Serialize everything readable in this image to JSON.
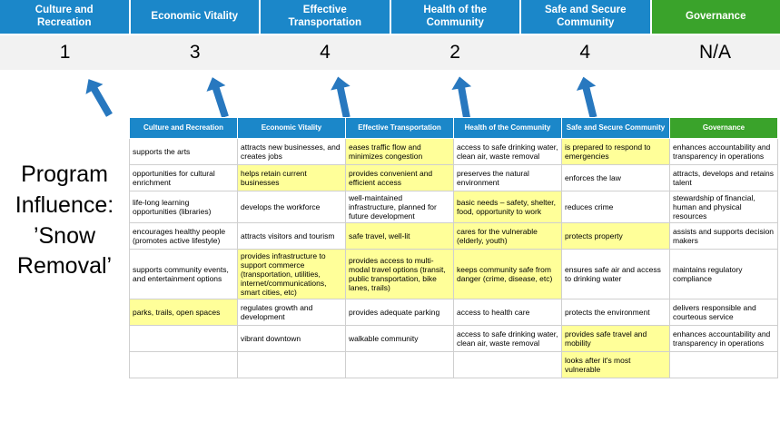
{
  "program_label": "Program Influence: ’Snow Removal’",
  "colors": {
    "blue": "#1b87c9",
    "green": "#3aa32b",
    "arrow": "#2878bf",
    "highlight": "#ffff99",
    "score_band": "#f2f2f2"
  },
  "pillars": [
    {
      "key": "culture-and-recreation",
      "label": "Culture and Recreation",
      "score": "1",
      "color": "blue"
    },
    {
      "key": "economic-vitality",
      "label": "Economic Vitality",
      "score": "3",
      "color": "blue"
    },
    {
      "key": "effective-transportation",
      "label": "Effective Transportation",
      "score": "4",
      "color": "blue"
    },
    {
      "key": "health-of-the-community",
      "label": "Health of the Community",
      "score": "2",
      "color": "blue"
    },
    {
      "key": "safe-and-secure-community",
      "label": "Safe and Secure Community",
      "score": "4",
      "color": "blue"
    },
    {
      "key": "governance",
      "label": "Governance",
      "score": "N/A",
      "color": "green"
    }
  ],
  "matrix": {
    "rows": [
      [
        {
          "t": "supports the arts",
          "h": false
        },
        {
          "t": "attracts new businesses, and creates jobs",
          "h": false
        },
        {
          "t": "eases traffic flow and minimizes congestion",
          "h": true
        },
        {
          "t": "access to safe drinking water, clean air, waste removal",
          "h": false
        },
        {
          "t": "is prepared to respond to emergencies",
          "h": true
        },
        {
          "t": "enhances accountability and transparency in operations",
          "h": false
        }
      ],
      [
        {
          "t": "opportunities for cultural enrichment",
          "h": false
        },
        {
          "t": "helps retain current businesses",
          "h": true
        },
        {
          "t": "provides convenient and efficient access",
          "h": true
        },
        {
          "t": "preserves the natural environment",
          "h": false
        },
        {
          "t": "enforces the law",
          "h": false
        },
        {
          "t": "attracts, develops and retains talent",
          "h": false
        }
      ],
      [
        {
          "t": "life-long learning opportunities (libraries)",
          "h": false
        },
        {
          "t": "develops the workforce",
          "h": false
        },
        {
          "t": "well-maintained infrastructure, planned for future development",
          "h": false
        },
        {
          "t": "basic needs – safety, shelter, food, opportunity to work",
          "h": true
        },
        {
          "t": "reduces crime",
          "h": false
        },
        {
          "t": "stewardship of financial, human and physical resources",
          "h": false
        }
      ],
      [
        {
          "t": "encourages healthy people (promotes active lifestyle)",
          "h": false
        },
        {
          "t": "attracts visitors and tourism",
          "h": false
        },
        {
          "t": "safe travel, well-lit",
          "h": true
        },
        {
          "t": "cares for the vulnerable (elderly, youth)",
          "h": true
        },
        {
          "t": "protects property",
          "h": true
        },
        {
          "t": "assists and supports decision makers",
          "h": false
        }
      ],
      [
        {
          "t": "supports community events, and entertainment options",
          "h": false
        },
        {
          "t": "provides infrastructure to support commerce (transportation, utilities, internet/communications, smart cities, etc)",
          "h": true
        },
        {
          "t": "provides access to multi-modal travel options (transit, public transportation, bike lanes, trails)",
          "h": true
        },
        {
          "t": "keeps community safe from danger (crime, disease, etc)",
          "h": true
        },
        {
          "t": "ensures safe air and access to drinking water",
          "h": false
        },
        {
          "t": "maintains regulatory compliance",
          "h": false
        }
      ],
      [
        {
          "t": "parks, trails, open spaces",
          "h": true
        },
        {
          "t": "regulates growth and development",
          "h": false
        },
        {
          "t": "provides adequate parking",
          "h": false
        },
        {
          "t": "access to health care",
          "h": false
        },
        {
          "t": "protects the environment",
          "h": false
        },
        {
          "t": "delivers responsible and courteous service",
          "h": false
        }
      ],
      [
        {
          "t": "",
          "h": false
        },
        {
          "t": "vibrant downtown",
          "h": false
        },
        {
          "t": "walkable community",
          "h": false
        },
        {
          "t": "access to safe drinking water, clean air, waste removal",
          "h": false
        },
        {
          "t": "provides safe travel and mobility",
          "h": true
        },
        {
          "t": "enhances accountability and transparency in operations",
          "h": false
        }
      ],
      [
        {
          "t": "",
          "h": false
        },
        {
          "t": "",
          "h": false
        },
        {
          "t": "",
          "h": false
        },
        {
          "t": "",
          "h": false
        },
        {
          "t": "looks after it's most vulnerable",
          "h": true
        },
        {
          "t": "",
          "h": false
        }
      ]
    ]
  }
}
